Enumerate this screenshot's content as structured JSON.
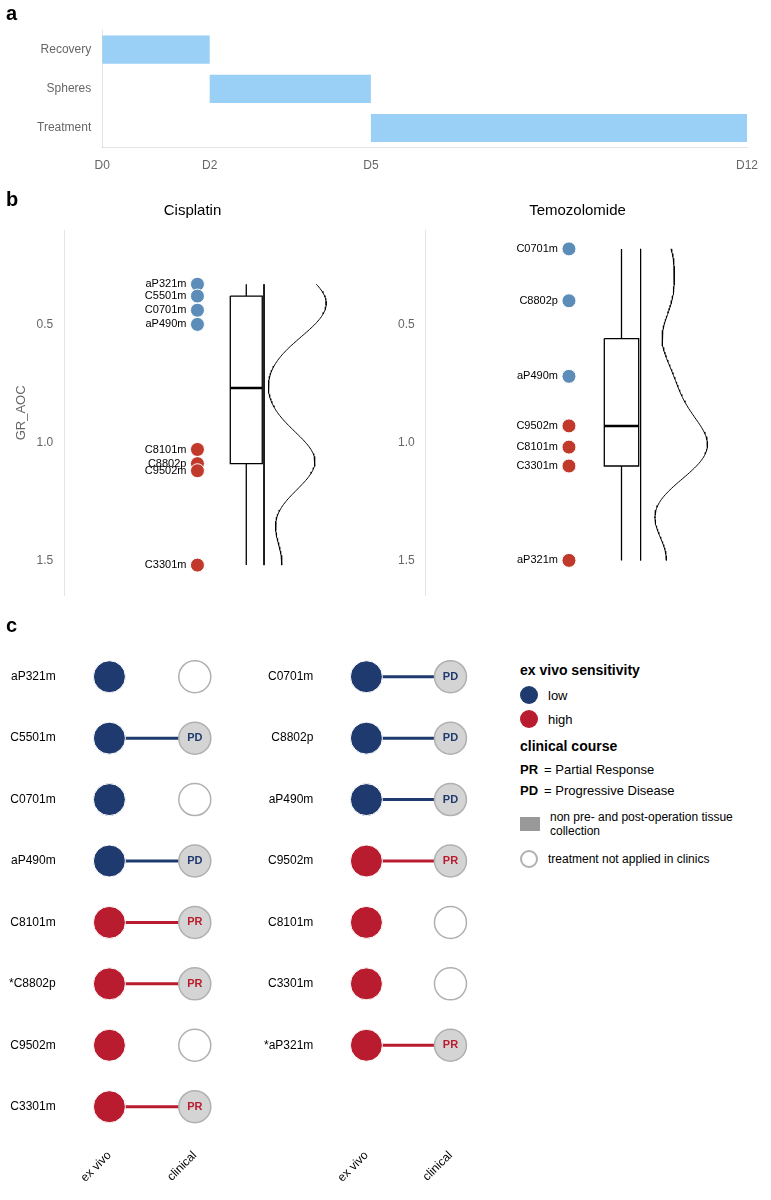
{
  "chart_data": [
    {
      "type": "timeline",
      "annotations": [
        "a"
      ],
      "orientation": "horizontal",
      "categories": [
        "Recovery",
        "Spheres",
        "Treatment"
      ],
      "values": [
        [
          0,
          2
        ],
        [
          2,
          5
        ],
        [
          5,
          12
        ]
      ],
      "xlim": [
        0,
        12
      ],
      "xticks": [
        {
          "value": 0,
          "label": "D0"
        },
        {
          "value": 2,
          "label": "D2"
        },
        {
          "value": 5,
          "label": "D5"
        },
        {
          "value": 12,
          "label": "D12"
        }
      ],
      "grid": false
    },
    {
      "type": "dot_box",
      "title": "Cisplatin",
      "annotations": [
        "b"
      ],
      "ylabel": "GR_AOC",
      "categories": [
        "aP321m",
        "C5501m",
        "C0701m",
        "aP490m",
        "C8101m",
        "C8802p",
        "C9502m",
        "C3301m"
      ],
      "values": [
        0.33,
        0.38,
        0.44,
        0.5,
        1.03,
        1.09,
        1.12,
        1.52
      ],
      "colors": [
        "#5b8db8",
        "#5b8db8",
        "#5b8db8",
        "#5b8db8",
        "#c0392b",
        "#c0392b",
        "#c0392b",
        "#c0392b"
      ],
      "box": {
        "q1": 0.38,
        "q3": 1.09,
        "median": 0.77,
        "whisker_low": 0.33,
        "whisker_high": 1.52
      },
      "ylim": [
        1.65,
        0.1
      ],
      "yticks": [
        0.5,
        {
          "value": 1.0,
          "label": "1.0"
        },
        1.5
      ],
      "grid": false
    },
    {
      "type": "dot_box",
      "title": "Temozolomide",
      "categories": [
        "C0701m",
        "C8802p",
        "aP490m",
        "C9502m",
        "C8101m",
        "C3301m",
        "aP321m"
      ],
      "values": [
        0.18,
        0.4,
        0.72,
        0.93,
        1.02,
        1.1,
        1.5
      ],
      "colors": [
        "#5b8db8",
        "#5b8db8",
        "#5b8db8",
        "#c0392b",
        "#c0392b",
        "#c0392b",
        "#c0392b"
      ],
      "box": {
        "q1": 0.56,
        "q3": 1.1,
        "median": 0.93,
        "whisker_low": 0.18,
        "whisker_high": 1.5
      },
      "ylim": [
        1.65,
        0.1
      ],
      "yticks": [
        0.5,
        {
          "value": 1.0,
          "label": "1.0"
        },
        1.5
      ],
      "grid": false
    },
    {
      "type": "dot_matrix",
      "annotations": [
        "c"
      ],
      "x": [
        "ex vivo",
        "clinical"
      ],
      "groups": [
        {
          "categories": [
            "aP321m",
            "C5501m",
            "C0701m",
            "aP490m",
            "C8101m",
            "*C8802p",
            "C9502m",
            "C3301m"
          ],
          "values": [
            "low",
            "low",
            "low",
            "low",
            "high",
            "high",
            "high",
            "high"
          ],
          "clinical": [
            null,
            "PD",
            null,
            "PD",
            "PR",
            "PR",
            null,
            "PR"
          ]
        },
        {
          "categories": [
            "C0701m",
            "C8802p",
            "aP490m",
            "C9502m",
            "C8101m",
            "C3301m",
            "*aP321m"
          ],
          "values": [
            "low",
            "low",
            "low",
            "high",
            "high",
            "high",
            "high"
          ],
          "clinical": [
            "PD",
            "PD",
            "PD",
            "PR",
            null,
            null,
            "PR"
          ]
        }
      ],
      "series": [
        {
          "name": "low",
          "color": "#1f3a6e",
          "clinical": "PD",
          "clinical_label": "= Progressive Disease"
        },
        {
          "name": "high",
          "color": "#b81c2e",
          "clinical": "PR",
          "clinical_label": "= Partial Response"
        }
      ],
      "legend": "right",
      "legend_titles": [
        "ex vivo sensitivity",
        "clinical course"
      ],
      "legend_notes": [
        {
          "text": "non pre- and post-operation tissue collection",
          "marker": "square",
          "color": "#999999"
        },
        {
          "text": "treatment not applied in clinics",
          "marker": "open_circle"
        }
      ]
    }
  ]
}
